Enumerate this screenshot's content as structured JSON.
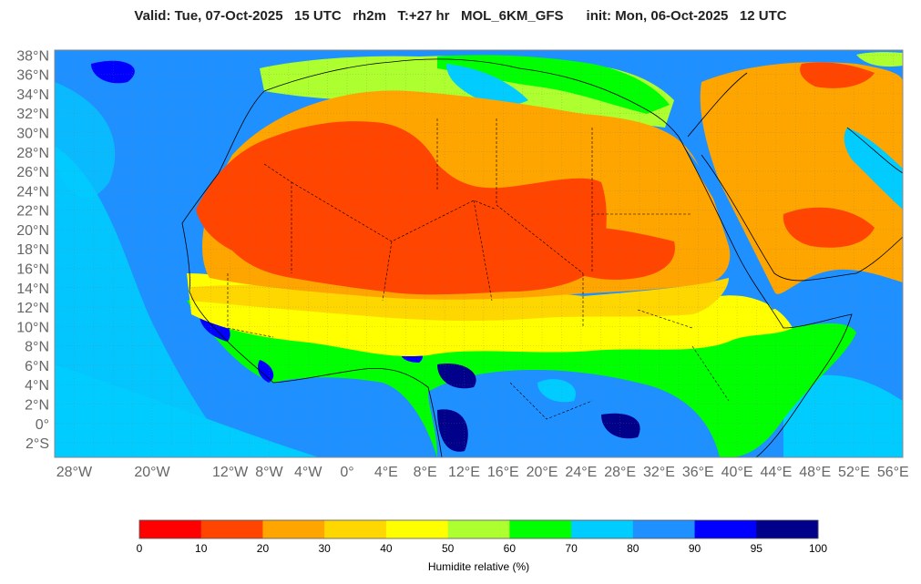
{
  "title": "Valid: Tue, 07-Oct-2025   15 UTC   rh2m   T:+27 hr   MOL_6KM_GFS      init: Mon, 06-Oct-2025   12 UTC",
  "map": {
    "variable": "rh2m",
    "model": "MOL_6KM_GFS",
    "lon_range": [
      -30,
      57
    ],
    "lat_range": [
      -3.5,
      38.5
    ],
    "lat_labels": [
      "38°N",
      "36°N",
      "34°N",
      "32°N",
      "30°N",
      "28°N",
      "26°N",
      "24°N",
      "22°N",
      "20°N",
      "18°N",
      "16°N",
      "14°N",
      "12°N",
      "10°N",
      "8°N",
      "6°N",
      "4°N",
      "2°N",
      "0°",
      "2°S"
    ],
    "lat_values": [
      38,
      36,
      34,
      32,
      30,
      28,
      26,
      24,
      22,
      20,
      18,
      16,
      14,
      12,
      10,
      8,
      6,
      4,
      2,
      0,
      -2
    ],
    "lon_labels": [
      "28°W",
      "20°W",
      "12°W",
      "8°W",
      "4°W",
      "0°",
      "4°E",
      "8°E",
      "12°E",
      "16°E",
      "20°E",
      "24°E",
      "28°E",
      "32°E",
      "36°E",
      "40°E",
      "44°E",
      "48°E",
      "52°E",
      "56°E"
    ],
    "lon_values": [
      -28,
      -20,
      -12,
      -8,
      -4,
      0,
      4,
      8,
      12,
      16,
      20,
      24,
      28,
      32,
      36,
      40,
      44,
      48,
      52,
      56
    ],
    "grid": true
  },
  "colorbar": {
    "title": "Humidite relative (%)",
    "ticks": [
      "0",
      "10",
      "20",
      "30",
      "40",
      "50",
      "60",
      "70",
      "80",
      "90",
      "95",
      "100"
    ],
    "colors": [
      "#ff0000",
      "#ff4500",
      "#ffa500",
      "#ffd700",
      "#ffff00",
      "#adff2f",
      "#00ff00",
      "#00ccff",
      "#1e90ff",
      "#0000ff",
      "#00008b"
    ]
  }
}
